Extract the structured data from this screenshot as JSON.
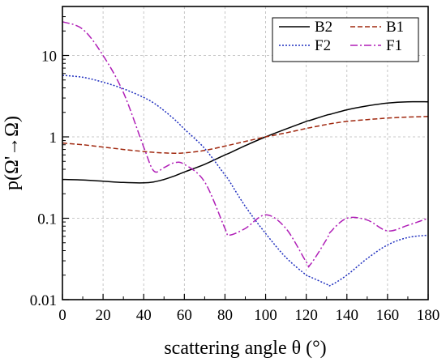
{
  "chart_data": {
    "type": "line",
    "title": "",
    "xlabel": "scattering angle θ (°)",
    "ylabel": "p(Ω'→Ω)",
    "xlim": [
      0,
      180
    ],
    "ylim": [
      0.01,
      40
    ],
    "yscale": "log",
    "x_ticks": [
      "0",
      "20",
      "40",
      "60",
      "80",
      "100",
      "120",
      "140",
      "160",
      "180"
    ],
    "y_ticks": [
      "0.01",
      "0.1",
      "1",
      "10"
    ],
    "grid": true,
    "legend_position": "top-right",
    "x": [
      0,
      10,
      20,
      30,
      40,
      45,
      50,
      55,
      60,
      70,
      80,
      82,
      90,
      100,
      110,
      120,
      122,
      130,
      132,
      140,
      150,
      160,
      170,
      180
    ],
    "series": [
      {
        "name": "B2",
        "color": "#000000",
        "dash": "solid",
        "values": [
          0.3,
          0.295,
          0.285,
          0.275,
          0.272,
          0.28,
          0.3,
          0.33,
          0.37,
          0.46,
          0.6,
          0.63,
          0.78,
          1.0,
          1.25,
          1.55,
          1.6,
          1.85,
          1.9,
          2.15,
          2.4,
          2.6,
          2.7,
          2.7
        ]
      },
      {
        "name": "B1",
        "color": "#a0280f",
        "dash": "dashed",
        "values": [
          0.84,
          0.8,
          0.75,
          0.7,
          0.66,
          0.645,
          0.635,
          0.63,
          0.635,
          0.68,
          0.77,
          0.79,
          0.88,
          1.0,
          1.12,
          1.27,
          1.3,
          1.42,
          1.45,
          1.55,
          1.63,
          1.7,
          1.75,
          1.78
        ]
      },
      {
        "name": "F2",
        "color": "#1f2fbf",
        "dash": "dotted",
        "values": [
          5.7,
          5.4,
          4.7,
          3.9,
          3.05,
          2.6,
          2.1,
          1.65,
          1.25,
          0.72,
          0.34,
          0.29,
          0.14,
          0.065,
          0.033,
          0.02,
          0.019,
          0.0155,
          0.015,
          0.02,
          0.032,
          0.047,
          0.058,
          0.062
        ]
      },
      {
        "name": "F1",
        "color": "#b01fb7",
        "dash": "dashdot",
        "values": [
          26.0,
          21.0,
          10.0,
          3.5,
          0.75,
          0.38,
          0.42,
          0.48,
          0.46,
          0.28,
          0.075,
          0.062,
          0.075,
          0.11,
          0.075,
          0.029,
          0.027,
          0.055,
          0.068,
          0.1,
          0.095,
          0.07,
          0.082,
          0.1
        ]
      }
    ]
  }
}
